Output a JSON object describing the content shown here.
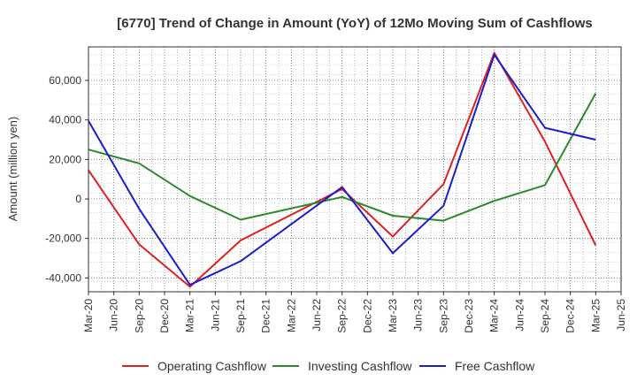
{
  "chart_data": {
    "type": "line",
    "title": "[6770]  Trend of Change in Amount (YoY) of 12Mo Moving Sum of Cashflows",
    "xlabel": "",
    "ylabel": "Amount (million yen)",
    "categories": [
      "Mar-20",
      "Jun-20",
      "Sep-20",
      "Dec-20",
      "Mar-21",
      "Jun-21",
      "Sep-21",
      "Dec-21",
      "Mar-22",
      "Jun-22",
      "Sep-22",
      "Dec-22",
      "Mar-23",
      "Jun-23",
      "Sep-23",
      "Dec-23",
      "Mar-24",
      "Jun-24",
      "Sep-24",
      "Dec-24",
      "Mar-25",
      "Jun-25"
    ],
    "ylim": [
      -47000,
      77000
    ],
    "yticks": [
      -40000,
      -20000,
      0,
      20000,
      40000,
      60000
    ],
    "ytick_labels": [
      "-40,000",
      "-20,000",
      "0",
      "20,000",
      "40,000",
      "60,000"
    ],
    "grid": true,
    "legend_position": "bottom",
    "series": [
      {
        "name": "Operating Cashflow",
        "color": "#e02020",
        "points": [
          {
            "x": "Mar-20",
            "y": 14500
          },
          {
            "x": "Sep-20",
            "y": -23000
          },
          {
            "x": "Mar-21",
            "y": -44500
          },
          {
            "x": "Sep-21",
            "y": -21000
          },
          {
            "x": "Sep-22",
            "y": 5000
          },
          {
            "x": "Mar-23",
            "y": -19000
          },
          {
            "x": "Sep-23",
            "y": 7500
          },
          {
            "x": "Mar-24",
            "y": 74000
          },
          {
            "x": "Sep-24",
            "y": 29000
          },
          {
            "x": "Mar-25",
            "y": -23500
          }
        ]
      },
      {
        "name": "Investing Cashflow",
        "color": "#2a8a2a",
        "points": [
          {
            "x": "Mar-20",
            "y": 25000
          },
          {
            "x": "Sep-20",
            "y": 18000
          },
          {
            "x": "Mar-21",
            "y": 1500
          },
          {
            "x": "Sep-21",
            "y": -10500
          },
          {
            "x": "Sep-22",
            "y": 1000
          },
          {
            "x": "Mar-23",
            "y": -8500
          },
          {
            "x": "Sep-23",
            "y": -11000
          },
          {
            "x": "Mar-24",
            "y": -1000
          },
          {
            "x": "Sep-24",
            "y": 7000
          },
          {
            "x": "Mar-25",
            "y": 53500
          }
        ]
      },
      {
        "name": "Free Cashflow",
        "color": "#1c1ccc",
        "points": [
          {
            "x": "Mar-20",
            "y": 39500
          },
          {
            "x": "Sep-20",
            "y": -5000
          },
          {
            "x": "Mar-21",
            "y": -43500
          },
          {
            "x": "Sep-21",
            "y": -31500
          },
          {
            "x": "Sep-22",
            "y": 6000
          },
          {
            "x": "Mar-23",
            "y": -27500
          },
          {
            "x": "Sep-23",
            "y": -3500
          },
          {
            "x": "Mar-24",
            "y": 73000
          },
          {
            "x": "Sep-24",
            "y": 36000
          },
          {
            "x": "Mar-25",
            "y": 30000
          }
        ]
      }
    ]
  }
}
